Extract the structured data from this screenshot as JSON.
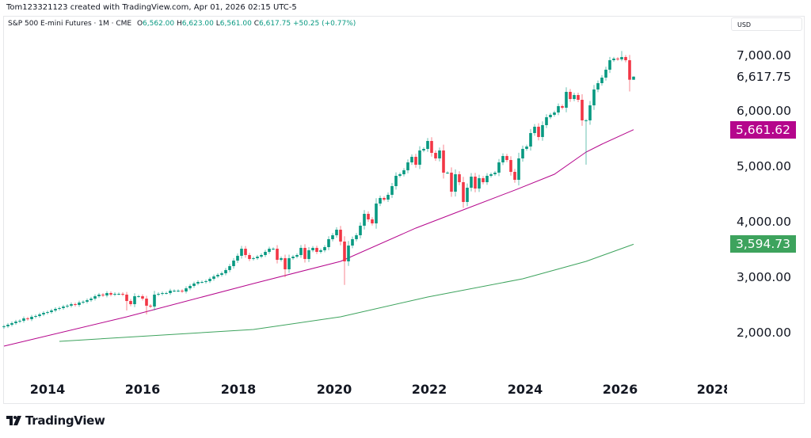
{
  "credit": "Tom123321123 created with TradingView.com, Apr 01, 2026 02:15 UTC-5",
  "legend": {
    "symbol": "S&P 500 E-mini Futures · 1M · CME",
    "open_label": "O",
    "open": "6,562.00",
    "high_label": "H",
    "high": "6,623.00",
    "low_label": "L",
    "low": "6,561.00",
    "close_label": "C",
    "close": "6,617.75",
    "change": "+50.25 (+0.77%)"
  },
  "currency": "USD",
  "footer": {
    "brand": "TradingView",
    "logo_icon": "tradingview-logo-icon"
  },
  "colors": {
    "up": "#089981",
    "down": "#F23645",
    "ma_pink": "#B5068C",
    "ma_green": "#3DA35D"
  },
  "chart_data": {
    "type": "candlestick",
    "interval": "1M",
    "start": "2013-01",
    "x_ticks": [
      "2014",
      "2016",
      "2018",
      "2020",
      "2022",
      "2024",
      "2026",
      "2028"
    ],
    "y_ticks": [
      "7,000.00",
      "6,000.00",
      "5,000.00",
      "4,000.00",
      "3,000.00",
      "2,000.00"
    ],
    "ylim": [
      1300,
      8000
    ],
    "y_scale": "linear",
    "grid": false,
    "closes": [
      2114,
      2143,
      2171,
      2200,
      2214,
      2257,
      2243,
      2286,
      2300,
      2329,
      2357,
      2371,
      2400,
      2429,
      2443,
      2471,
      2486,
      2514,
      2500,
      2543,
      2557,
      2586,
      2614,
      2657,
      2686,
      2671,
      2714,
      2686,
      2700,
      2700,
      2686,
      2571,
      2514,
      2657,
      2657,
      2614,
      2486,
      2471,
      2686,
      2700,
      2714,
      2714,
      2757,
      2757,
      2757,
      2743,
      2800,
      2843,
      2886,
      2914,
      2914,
      2929,
      2971,
      3014,
      3043,
      3071,
      3129,
      3200,
      3300,
      3386,
      3514,
      3400,
      3329,
      3343,
      3371,
      3400,
      3457,
      3514,
      3514,
      3314,
      3343,
      3143,
      3343,
      3371,
      3400,
      3529,
      3329,
      3486,
      3529,
      3457,
      3486,
      3543,
      3686,
      3757,
      3857,
      3643,
      3286,
      3571,
      3686,
      3757,
      3929,
      4143,
      4043,
      3971,
      4329,
      4429,
      4400,
      4486,
      4643,
      4829,
      4857,
      4929,
      5071,
      5171,
      5029,
      5286,
      5314,
      5457,
      5243,
      5143,
      5286,
      4886,
      4886,
      4543,
      4857,
      4714,
      4357,
      4614,
      4814,
      4600,
      4786,
      4714,
      4829,
      4857,
      4886,
      5071,
      5186,
      5114,
      4900,
      4757,
      5143,
      5314,
      5357,
      5600,
      5714,
      5529,
      5743,
      5886,
      5929,
      5971,
      6086,
      6057,
      6343,
      6214,
      6286,
      6200,
      5829,
      5829,
      6100,
      6386,
      6500,
      6600,
      6743,
      6914,
      6943,
      6929,
      6971,
      6914,
      6562,
      6617.75
    ],
    "first_open": 2100,
    "last_candle": {
      "open": 6562.0,
      "high": 6623.0,
      "low": 6561.0,
      "close": 6617.75
    },
    "wick_extremes": [
      {
        "date": "2015-08",
        "low": 2400
      },
      {
        "date": "2016-01",
        "low": 2330
      },
      {
        "date": "2018-12",
        "low": 3000
      },
      {
        "date": "2020-03",
        "low": 2860
      },
      {
        "date": "2022-09",
        "low": 4250
      },
      {
        "date": "2025-04",
        "low": 5030
      },
      {
        "date": "2026-03",
        "low": 6350
      },
      {
        "date": "2026-01",
        "high": 7080
      }
    ],
    "series": [
      {
        "kind": "moving-average",
        "color": "#B5068C",
        "last": "5,661.62",
        "points": [
          [
            "2013-01",
            1757
          ],
          [
            "2015-08",
            2286
          ],
          [
            "2018-04",
            2886
          ],
          [
            "2020-02",
            3286
          ],
          [
            "2021-09",
            3886
          ],
          [
            "2022-10",
            4243
          ],
          [
            "2023-10",
            4571
          ],
          [
            "2024-08",
            4857
          ],
          [
            "2025-04",
            5257
          ],
          [
            "2025-08",
            5400
          ],
          [
            "2026-04",
            5661.62
          ]
        ]
      },
      {
        "kind": "moving-average",
        "color": "#3DA35D",
        "last": "3,594.73",
        "points": [
          [
            "2014-03",
            1843
          ],
          [
            "2018-04",
            2057
          ],
          [
            "2020-02",
            2286
          ],
          [
            "2021-12",
            2643
          ],
          [
            "2023-12",
            2971
          ],
          [
            "2025-04",
            3286
          ],
          [
            "2026-04",
            3594.73
          ]
        ]
      }
    ],
    "last_price_label": "6,617.75"
  }
}
